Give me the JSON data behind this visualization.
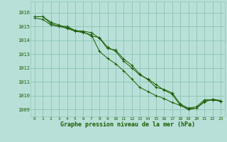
{
  "title": "Graphe pression niveau de la mer (hPa)",
  "background_color": "#b8e0d8",
  "grid_color": "#90c8b8",
  "line_color": "#1a5c00",
  "xlim": [
    -0.5,
    23.5
  ],
  "ylim": [
    1008.5,
    1016.8
  ],
  "yticks": [
    1009,
    1010,
    1011,
    1012,
    1013,
    1014,
    1015,
    1016
  ],
  "xticks": [
    0,
    1,
    2,
    3,
    4,
    5,
    6,
    7,
    8,
    9,
    10,
    11,
    12,
    13,
    14,
    15,
    16,
    17,
    18,
    19,
    20,
    21,
    22,
    23
  ],
  "series": [
    [
      1015.7,
      1015.7,
      1015.2,
      1015.0,
      1015.0,
      1014.7,
      1014.6,
      1014.3,
      1014.2,
      1013.5,
      1013.2,
      1012.5,
      1012.0,
      1011.5,
      1011.2,
      1010.8,
      1010.4,
      1010.1,
      1009.3,
      1009.0,
      1009.1,
      1009.6,
      1009.7,
      1009.6
    ],
    [
      1015.7,
      1015.7,
      1015.3,
      1015.1,
      1014.9,
      1014.7,
      1014.65,
      1014.55,
      1014.15,
      1013.4,
      1013.3,
      1012.65,
      1012.2,
      1011.55,
      1011.15,
      1010.6,
      1010.45,
      1010.2,
      1009.4,
      1009.1,
      1009.2,
      1009.7,
      1009.7,
      1009.6
    ],
    [
      1015.6,
      1015.5,
      1015.1,
      1015.0,
      1014.85,
      1014.65,
      1014.55,
      1014.4,
      1013.2,
      1012.7,
      1012.3,
      1011.8,
      1011.2,
      1010.6,
      1010.3,
      1010.0,
      1009.8,
      1009.5,
      1009.3,
      1009.05,
      1009.1,
      1009.55,
      1009.75,
      1009.65
    ]
  ]
}
